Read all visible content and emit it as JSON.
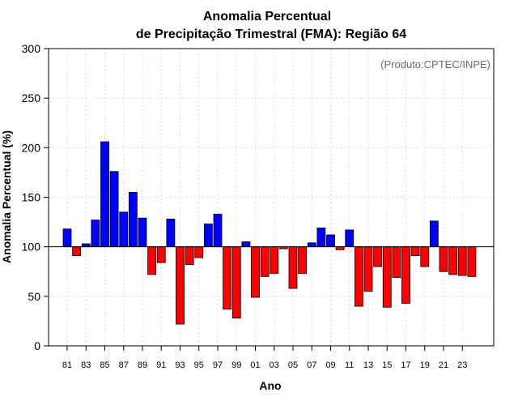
{
  "chart_data": {
    "type": "bar",
    "title": "Anomalia Percentual",
    "subtitle": "de Precipitação Trimestral (FMA): Região 64",
    "xlabel": "Ano",
    "ylabel": "Anomalia Percentual (%)",
    "credit": "(Produto:CPTEC/INPE)",
    "ylim": [
      0,
      300
    ],
    "yticks": [
      0,
      50,
      100,
      150,
      200,
      250,
      300
    ],
    "baseline": 100,
    "grid": true,
    "colors": {
      "above": "#0000ff",
      "below": "#ff0000",
      "edge": "#000000"
    },
    "categories": [
      "81",
      "82",
      "83",
      "84",
      "85",
      "86",
      "87",
      "88",
      "89",
      "90",
      "91",
      "92",
      "93",
      "94",
      "95",
      "96",
      "97",
      "98",
      "99",
      "00",
      "01",
      "02",
      "03",
      "04",
      "05",
      "06",
      "07",
      "08",
      "09",
      "10",
      "11",
      "12",
      "13",
      "14",
      "15",
      "16",
      "17",
      "18",
      "19",
      "20",
      "21",
      "22",
      "23",
      "24"
    ],
    "values": [
      118,
      91,
      103,
      127,
      206,
      176,
      135,
      155,
      129,
      72,
      84,
      128,
      22,
      82,
      89,
      123,
      133,
      37,
      28,
      105,
      49,
      70,
      73,
      98,
      58,
      73,
      104,
      119,
      112,
      97,
      117,
      40,
      55,
      80,
      39,
      69,
      43,
      91,
      80,
      126,
      75,
      72,
      71,
      70
    ],
    "xtick_labels": [
      "81",
      "83",
      "85",
      "87",
      "89",
      "91",
      "93",
      "95",
      "97",
      "99",
      "01",
      "03",
      "05",
      "07",
      "09",
      "11",
      "13",
      "15",
      "17",
      "19",
      "21",
      "23"
    ]
  }
}
